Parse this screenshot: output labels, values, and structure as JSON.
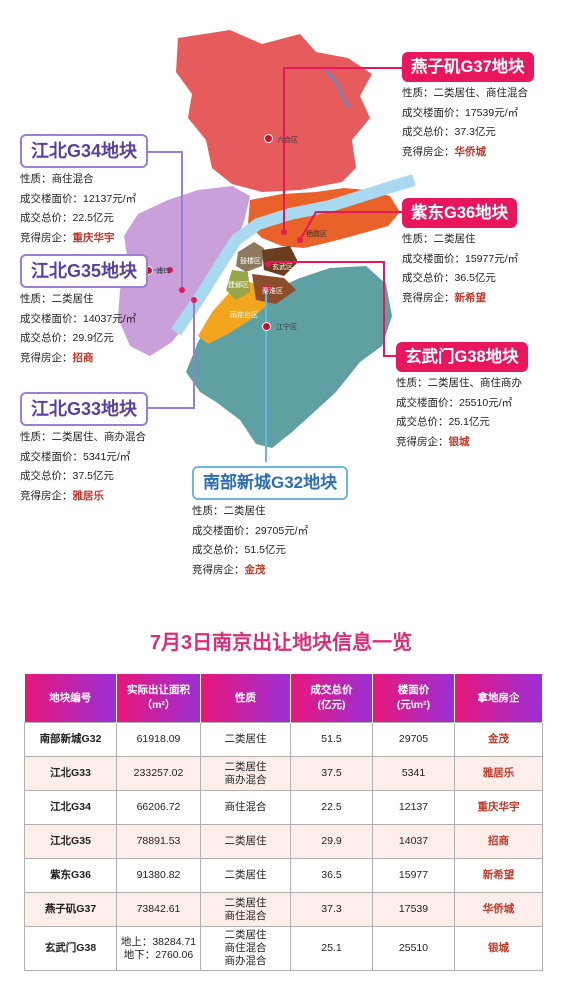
{
  "map": {
    "district_labels": [
      "六合区",
      "浦口",
      "栖霞区",
      "江宁区",
      "玄武区",
      "建邺区",
      "雨花台区",
      "鼓楼区",
      "秦淮区"
    ],
    "region_colors": {
      "liuhe": "#e65c5c",
      "pukou": "#c9a0d9",
      "qixia": "#e8622a",
      "jiangning": "#5fa0a3",
      "yuhuatai": "#f2a51f",
      "core": "#7a4b2a",
      "river": "#a9d9f0"
    }
  },
  "parcels": [
    {
      "id": "yanziji",
      "title": "燕子矶G37地块",
      "nature_label": "性质：",
      "nature": "二类居住、商住混合",
      "price_label": "成交楼面价：",
      "price": "17539元/㎡",
      "total_label": "成交总价：",
      "total": "37.3亿元",
      "dev_label": "竞得房企：",
      "developer": "华侨城"
    },
    {
      "id": "jiangbei34",
      "title": "江北G34地块",
      "nature_label": "性质：",
      "nature": "商住混合",
      "price_label": "成交楼面价：",
      "price": "12137元/㎡",
      "total_label": "成交总价：",
      "total": "22.5亿元",
      "dev_label": "竞得房企：",
      "developer": "重庆华宇"
    },
    {
      "id": "zidong",
      "title": "紫东G36地块",
      "nature_label": "性质：",
      "nature": "二类居住",
      "price_label": "成交楼面价：",
      "price": "15977元/㎡",
      "total_label": "成交总价：",
      "total": "36.5亿元",
      "dev_label": "竞得房企：",
      "developer": "新希望"
    },
    {
      "id": "jiangbei35",
      "title": "江北G35地块",
      "nature_label": "性质：",
      "nature": "二类居住",
      "price_label": "成交楼面价：",
      "price": "14037元/㎡",
      "total_label": "成交总价：",
      "total": "29.9亿元",
      "dev_label": "竞得房企：",
      "developer": "招商"
    },
    {
      "id": "xuanwumen",
      "title": "玄武门G38地块",
      "nature_label": "性质：",
      "nature": "二类居住、商住商办",
      "price_label": "成交楼面价：",
      "price": "25510元/㎡",
      "total_label": "成交总价：",
      "total": "25.1亿元",
      "dev_label": "竞得房企：",
      "developer": "银城"
    },
    {
      "id": "jiangbei33",
      "title": "江北G33地块",
      "nature_label": "性质：",
      "nature": "二类居住、商办混合",
      "price_label": "成交楼面价：",
      "price": "5341元/㎡",
      "total_label": "成交总价：",
      "total": "37.5亿元",
      "dev_label": "竞得房企：",
      "developer": "雅居乐"
    },
    {
      "id": "nanbu",
      "title": "南部新城G32地块",
      "nature_label": "性质：",
      "nature": "二类居住",
      "price_label": "成交楼面价：",
      "price": "29705元/㎡",
      "total_label": "成交总价：",
      "total": "51.5亿元",
      "dev_label": "竞得房企：",
      "developer": "金茂"
    }
  ],
  "table": {
    "title": "7月3日南京出让地块信息一览",
    "headers": [
      "地块编号",
      "实际出让面积\n（m²）",
      "性质",
      "成交总价\n(亿元)",
      "楼面价\n(元\\m²)",
      "拿地房企"
    ],
    "rows": [
      [
        "南部新城G32",
        "61918.09",
        "二类居住",
        "51.5",
        "29705",
        "金茂"
      ],
      [
        "江北G33",
        "233257.02",
        "二类居住\n商办混合",
        "37.5",
        "5341",
        "雅居乐"
      ],
      [
        "江北G34",
        "66206.72",
        "商住混合",
        "22.5",
        "12137",
        "重庆华宇"
      ],
      [
        "江北G35",
        "78891.53",
        "二类居住",
        "29.9",
        "14037",
        "招商"
      ],
      [
        "紫东G36",
        "91380.82",
        "二类居住",
        "36.5",
        "15977",
        "新希望"
      ],
      [
        "燕子矶G37",
        "73842.61",
        "二类居住\n商住混合",
        "37.3",
        "17539",
        "华侨城"
      ],
      [
        "玄武门G38",
        "地上：38284.71\n地下：2760.06",
        "二类居住\n商住混合\n商办混合",
        "25.1",
        "25510",
        "银城"
      ]
    ]
  }
}
